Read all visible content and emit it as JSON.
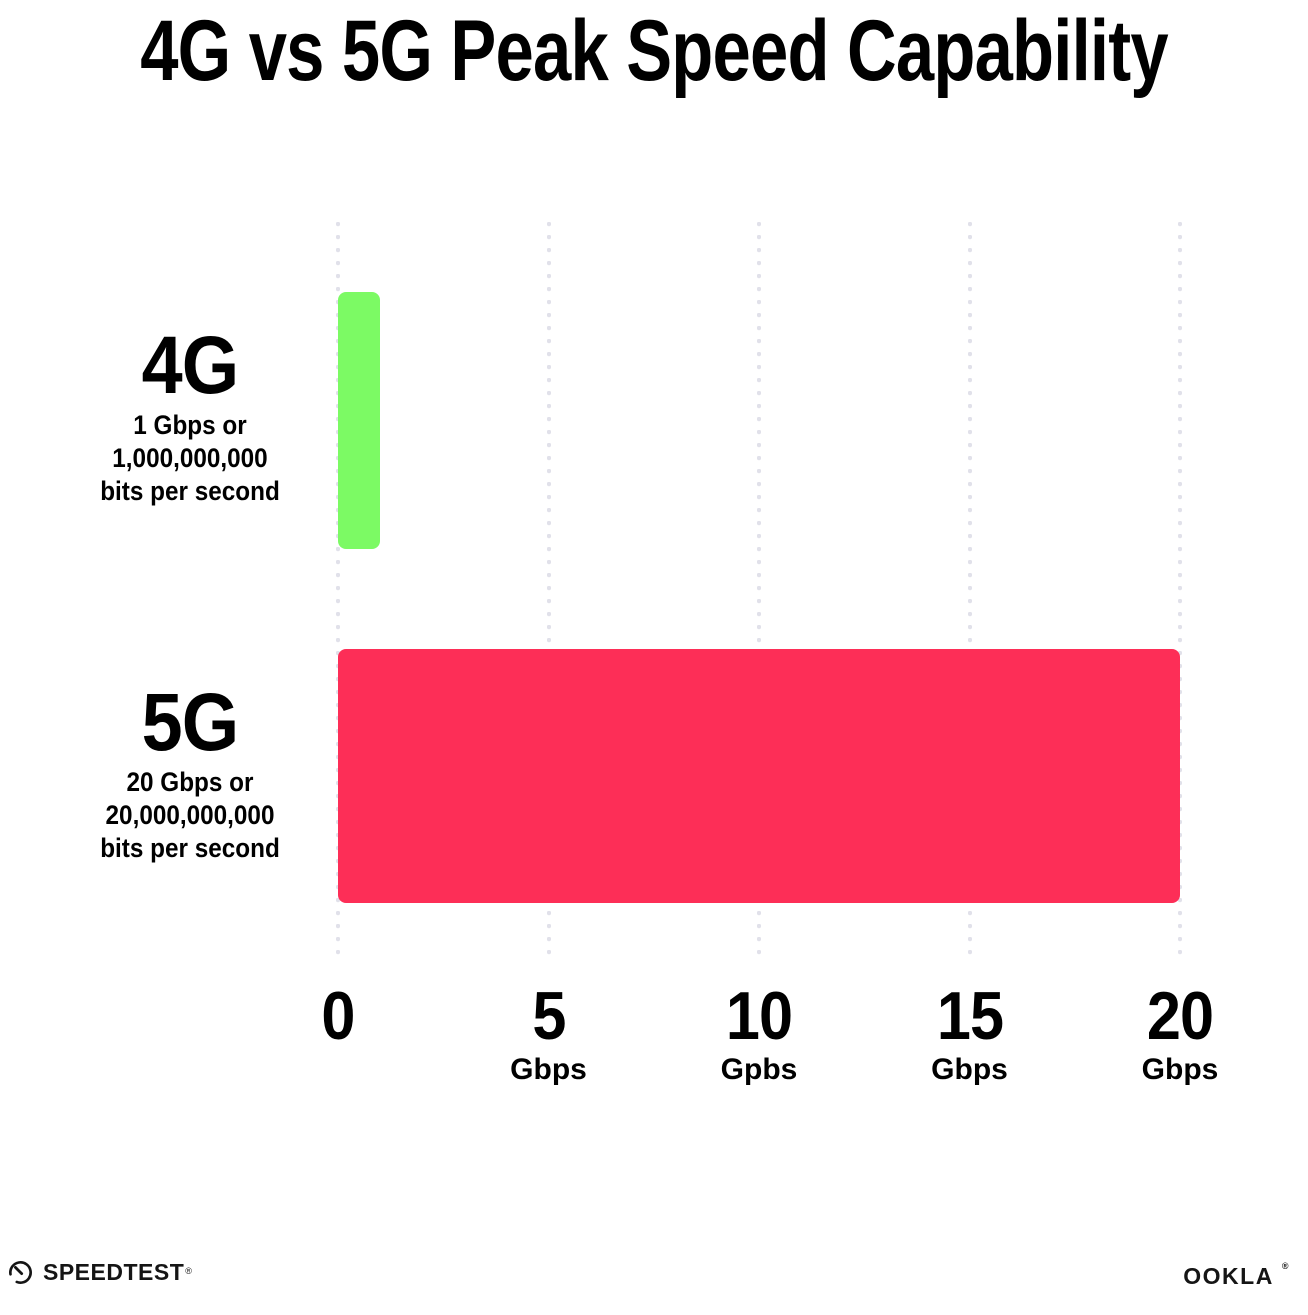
{
  "title": "4G vs 5G Peak Speed Capability",
  "chart_data": {
    "type": "bar",
    "orientation": "horizontal",
    "title": "4G vs 5G Peak Speed Capability",
    "categories": [
      "4G",
      "5G"
    ],
    "values": [
      1,
      20
    ],
    "value_unit": "Gbps",
    "xlim": [
      0,
      20
    ],
    "grid": "dotted vertical gridlines at 0, 5, 10, 15, 20",
    "legend": "none",
    "bars": [
      {
        "name": "4G",
        "value_gbps": 1,
        "color": "#7CFA64",
        "sublines": [
          "1 Gbps or",
          "1,000,000,000",
          "bits per second"
        ]
      },
      {
        "name": "5G",
        "value_gbps": 20,
        "color": "#FD2E57",
        "sublines": [
          "20 Gbps or",
          "20,000,000,000",
          "bits per second"
        ]
      }
    ],
    "x_ticks": [
      {
        "label": "0",
        "unit": ""
      },
      {
        "label": "5",
        "unit": "Gbps"
      },
      {
        "label": "10",
        "unit": "Gpbs"
      },
      {
        "label": "15",
        "unit": "Gbps"
      },
      {
        "label": "20",
        "unit": "Gbps"
      }
    ]
  },
  "footer": {
    "speedtest_label": "SPEEDTEST",
    "speedtest_trademark": "®",
    "speedtest_icon": "gauge-icon",
    "ookla_label": "OOKLA",
    "ookla_trademark": "®"
  },
  "colors": {
    "bar_4g": "#7CFA64",
    "bar_5g": "#FD2E57",
    "gridline": "#E1E1EA",
    "text": "#000000",
    "background": "#FFFFFF"
  }
}
